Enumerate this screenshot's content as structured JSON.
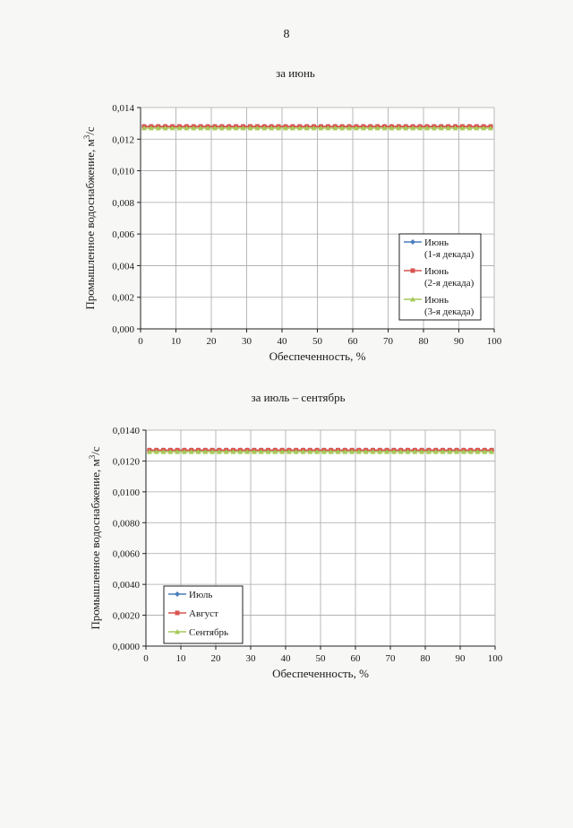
{
  "page_number": "8",
  "chart_data": [
    {
      "type": "line",
      "title": "за июнь",
      "xlabel": "Обеспеченность, %",
      "ylabel": "Промышленное  водоснабжение, м",
      "ylabel_sup": "3",
      "ylabel_suffix": "/с",
      "xlim": [
        0,
        100
      ],
      "ylim": [
        0,
        0.014
      ],
      "xticks": [
        0,
        10,
        20,
        30,
        40,
        50,
        60,
        70,
        80,
        90,
        100
      ],
      "xtick_labels": [
        "0",
        "10",
        "20",
        "30",
        "40",
        "50",
        "60",
        "70",
        "80",
        "90",
        "100"
      ],
      "yticks": [
        0,
        0.002,
        0.004,
        0.006,
        0.008,
        0.01,
        0.012,
        0.014
      ],
      "ytick_labels": [
        "0,000",
        "0,002",
        "0,004",
        "0,006",
        "0,008",
        "0,010",
        "0,012",
        "0,014"
      ],
      "grid": true,
      "legend_position": "lower-right",
      "x": [
        1,
        3,
        5,
        7,
        9,
        11,
        13,
        15,
        17,
        19,
        21,
        23,
        25,
        27,
        29,
        31,
        33,
        35,
        37,
        39,
        41,
        43,
        45,
        47,
        49,
        51,
        53,
        55,
        57,
        59,
        61,
        63,
        65,
        67,
        69,
        71,
        73,
        75,
        77,
        79,
        81,
        83,
        85,
        87,
        89,
        91,
        93,
        95,
        97,
        99
      ],
      "series": [
        {
          "name": "Июнь (1-я декада)",
          "legend_lines": [
            "Июнь",
            "(1-я декада)"
          ],
          "color": "#4a7ebb",
          "marker": "diamond",
          "value": 0.0128
        },
        {
          "name": "Июнь (2-я декада)",
          "legend_lines": [
            "Июнь",
            "(2-я декада)"
          ],
          "color": "#d9534f",
          "marker": "square",
          "value": 0.0128
        },
        {
          "name": "Июнь (3-я декада)",
          "legend_lines": [
            "Июнь",
            "(3-я декада)"
          ],
          "color": "#a6c95a",
          "marker": "triangle",
          "value": 0.0127
        }
      ]
    },
    {
      "type": "line",
      "title": "за июль – сентябрь",
      "xlabel": "Обеспеченность, %",
      "ylabel": "Промышленное  водоснабжение, м",
      "ylabel_sup": "3",
      "ylabel_suffix": "/с",
      "xlim": [
        0,
        100
      ],
      "ylim": [
        0,
        0.014
      ],
      "xticks": [
        0,
        10,
        20,
        30,
        40,
        50,
        60,
        70,
        80,
        90,
        100
      ],
      "xtick_labels": [
        "0",
        "10",
        "20",
        "30",
        "40",
        "50",
        "60",
        "70",
        "80",
        "90",
        "100"
      ],
      "yticks": [
        0,
        0.002,
        0.004,
        0.006,
        0.008,
        0.01,
        0.012,
        0.014
      ],
      "ytick_labels": [
        "0,0000",
        "0,0020",
        "0,0040",
        "0,0060",
        "0,0080",
        "0,0100",
        "0,0120",
        "0,0140"
      ],
      "grid": true,
      "legend_position": "lower-left",
      "x": [
        1,
        3,
        5,
        7,
        9,
        11,
        13,
        15,
        17,
        19,
        21,
        23,
        25,
        27,
        29,
        31,
        33,
        35,
        37,
        39,
        41,
        43,
        45,
        47,
        49,
        51,
        53,
        55,
        57,
        59,
        61,
        63,
        65,
        67,
        69,
        71,
        73,
        75,
        77,
        79,
        81,
        83,
        85,
        87,
        89,
        91,
        93,
        95,
        97,
        99
      ],
      "series": [
        {
          "name": "Июль",
          "legend_lines": [
            "Июль"
          ],
          "color": "#4a7ebb",
          "marker": "diamond",
          "value": 0.0127
        },
        {
          "name": "Август",
          "legend_lines": [
            "Август"
          ],
          "color": "#d9534f",
          "marker": "square",
          "value": 0.0127
        },
        {
          "name": "Сентябрь",
          "legend_lines": [
            "Сентябрь"
          ],
          "color": "#a6c95a",
          "marker": "triangle",
          "value": 0.0126
        }
      ]
    }
  ]
}
